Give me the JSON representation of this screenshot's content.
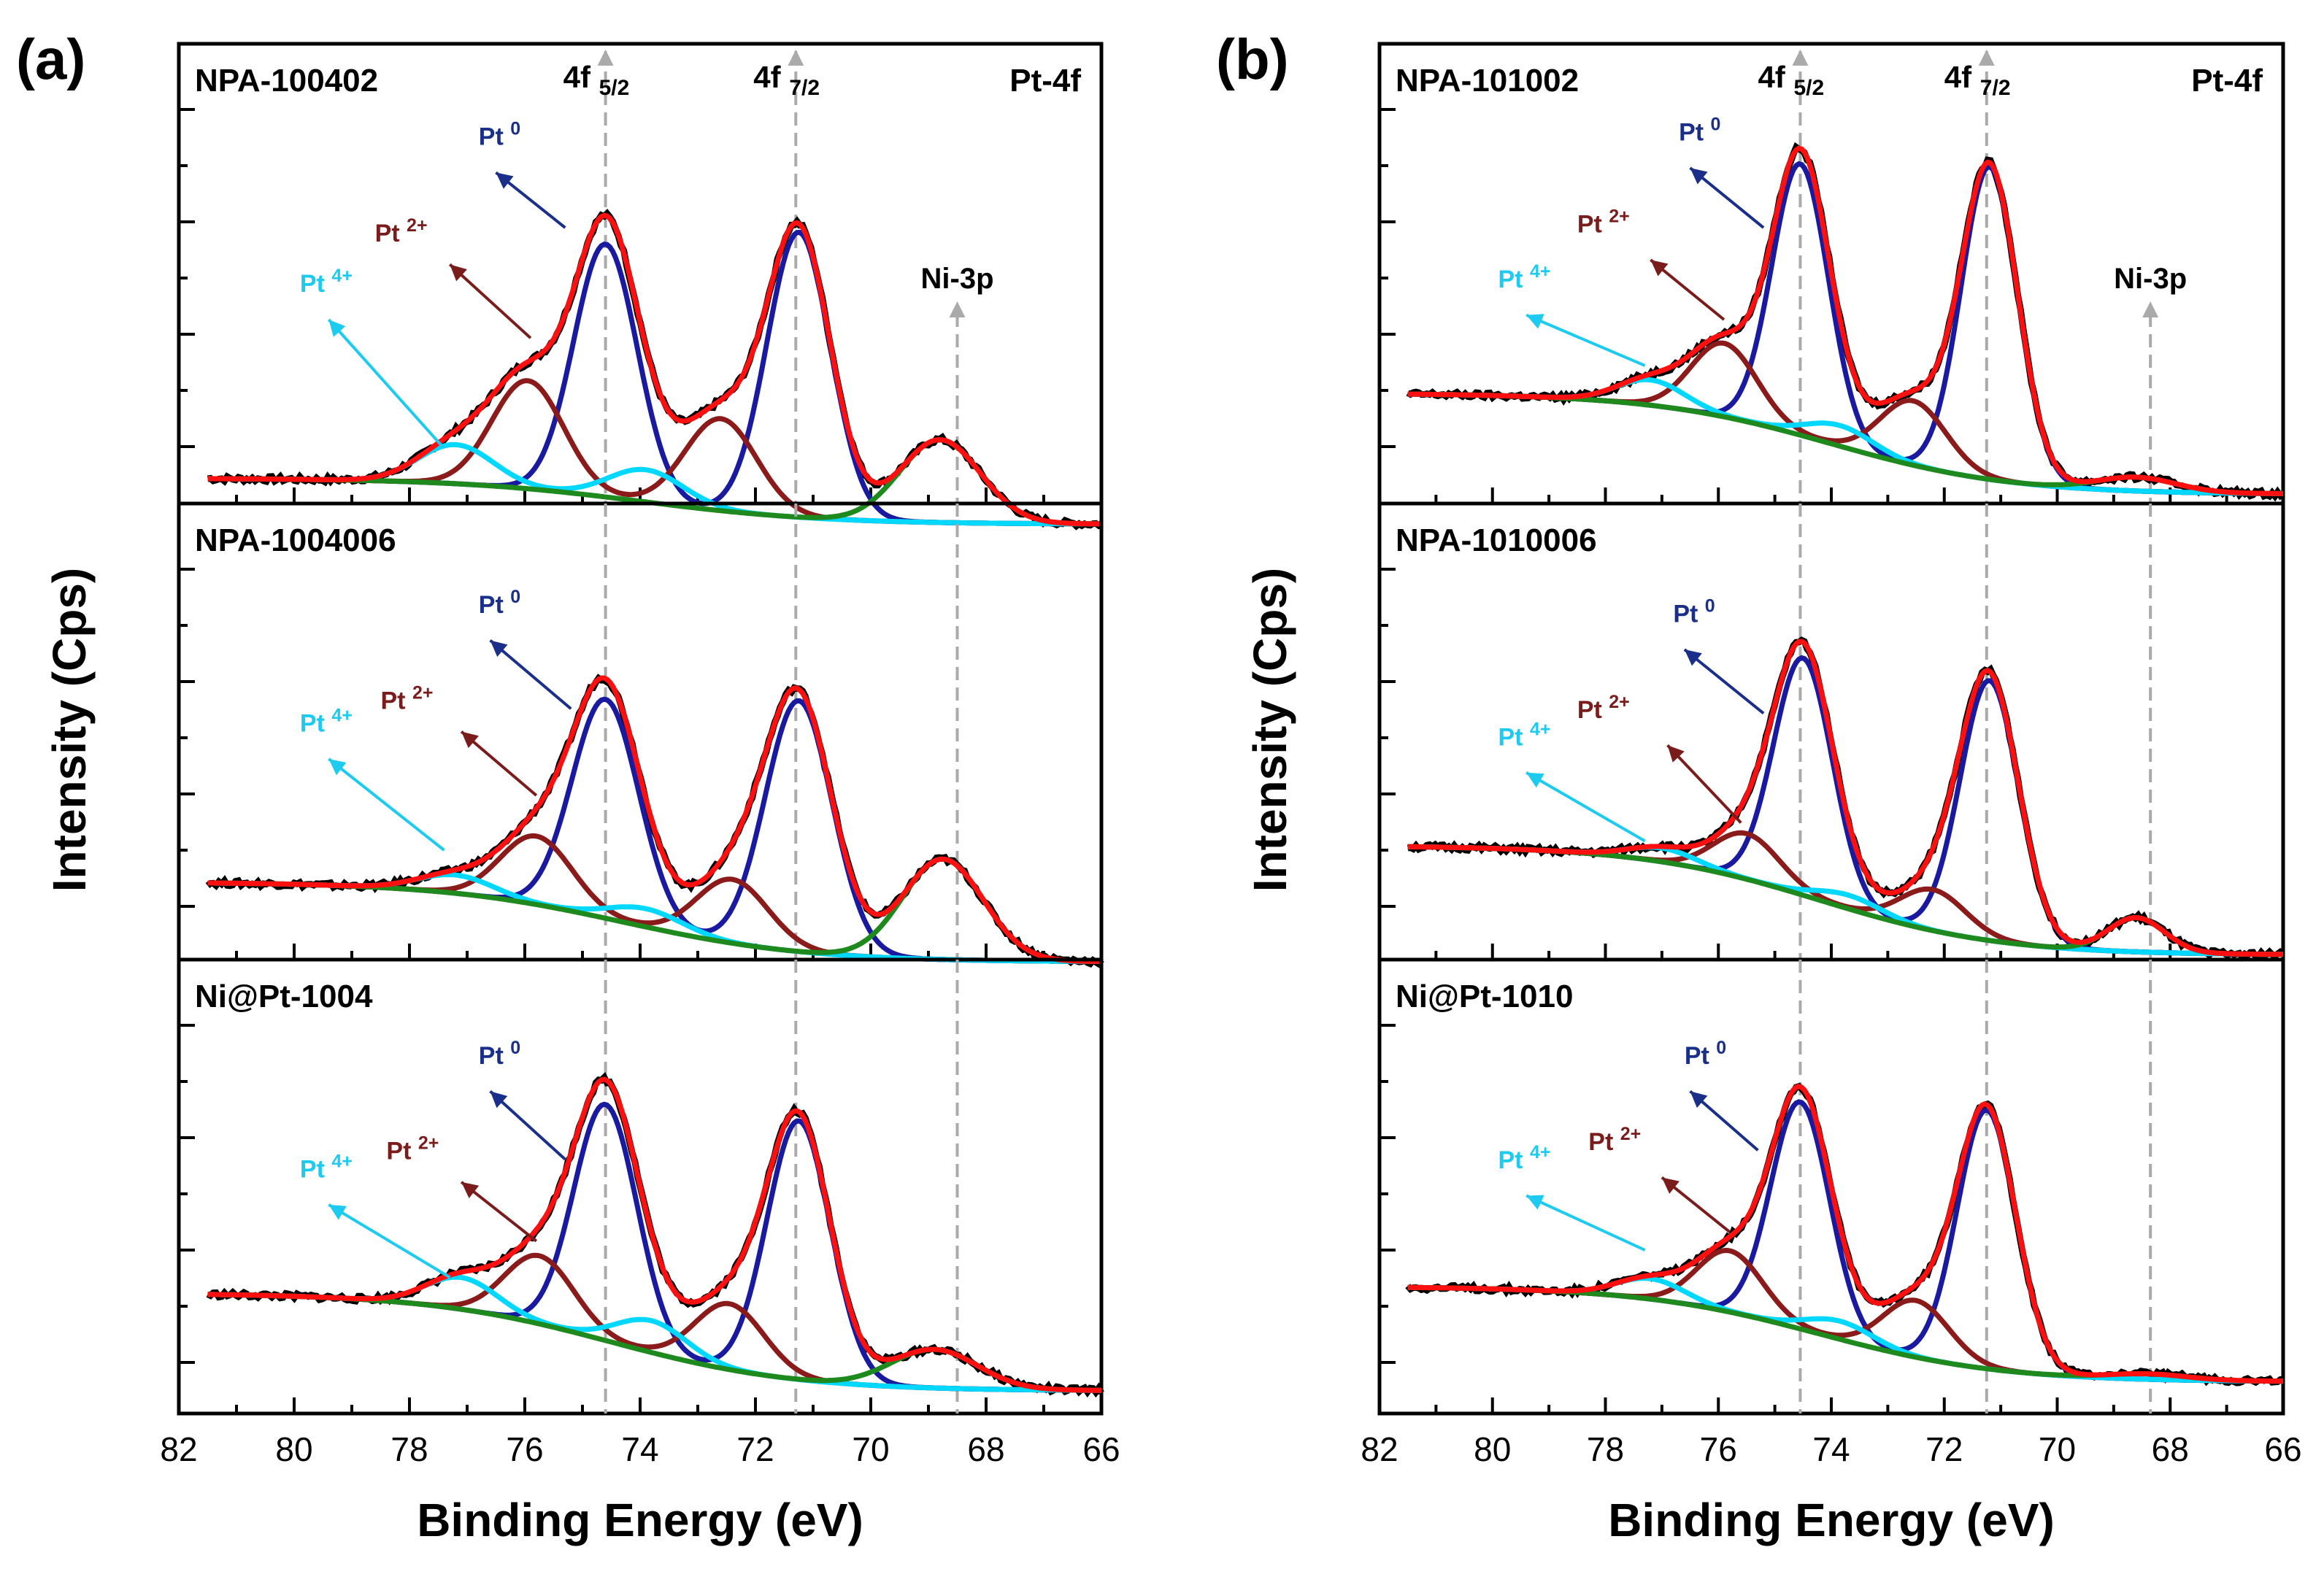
{
  "chart_data": [
    {
      "type": "line",
      "panel_label": "(a)",
      "xlabel": "Binding Energy (eV)",
      "ylabel": "Intensity  (Cps)",
      "xlim": [
        82,
        66
      ],
      "xticks": [
        82,
        80,
        78,
        76,
        74,
        72,
        70,
        68,
        66
      ],
      "element_label": "Pt-4f",
      "peak_labels": [
        {
          "main": "4f",
          "sub": "5/2",
          "x": 74.6
        },
        {
          "main": "4f",
          "sub": "7/2",
          "x": 71.3
        }
      ],
      "ni_label": {
        "text": "Ni-3p",
        "x": 68.5
      },
      "subplots": [
        {
          "name": "NPA-100402",
          "background": {
            "color": "#1e8a1e",
            "start": 0.055,
            "end": -0.045,
            "mid": 74.0
          },
          "components": [
            {
              "label": "Pt 0",
              "color": "#1a1aa0",
              "centers": [
                74.6,
                71.25
              ],
              "amps": [
                0.55,
                0.62
              ],
              "width": 0.55
            },
            {
              "label": "Pt 2+",
              "color": "#8b1a1a",
              "centers": [
                75.95,
                72.6
              ],
              "amps": [
                0.235,
                0.2
              ],
              "width": 0.62
            },
            {
              "label": "Pt 4+",
              "color": "#00d8ff",
              "centers": [
                77.2,
                73.9
              ],
              "amps": [
                0.085,
                0.07
              ],
              "width": 0.65
            },
            {
              "label": "Ni-3p",
              "color": "#1e8a1e",
              "centers": [
                68.8
              ],
              "amps": [
                0.18
              ],
              "width": 0.7
            }
          ],
          "annotations": [
            {
              "text": "Pt",
              "sup": "0",
              "color": "#1a2f8a",
              "text_x": 76.8,
              "text_y": 0.78,
              "from": [
                75.3,
                0.6
              ],
              "to": [
                76.5,
                0.72
              ]
            },
            {
              "text": "Pt",
              "sup": "2+",
              "color": "#7b1c1c",
              "text_x": 78.6,
              "text_y": 0.57,
              "from": [
                75.9,
                0.36
              ],
              "to": [
                77.3,
                0.52
              ]
            },
            {
              "text": "Pt",
              "sup": "4+",
              "color": "#1ecbf0",
              "text_x": 79.9,
              "text_y": 0.46,
              "from": [
                77.4,
                0.12
              ],
              "to": [
                79.4,
                0.4
              ]
            }
          ]
        },
        {
          "name": "NPA-1004006",
          "background": {
            "color": "#1e8a1e",
            "start": 0.17,
            "end": -0.005,
            "mid": 74.3
          },
          "components": [
            {
              "label": "Pt 0",
              "color": "#1a1aa0",
              "centers": [
                74.6,
                71.25
              ],
              "amps": [
                0.48,
                0.55
              ],
              "width": 0.58
            },
            {
              "label": "Pt 2+",
              "color": "#8b1a1a",
              "centers": [
                75.8,
                72.4
              ],
              "amps": [
                0.15,
                0.14
              ],
              "width": 0.62
            },
            {
              "label": "Pt 4+",
              "color": "#00d8ff",
              "centers": [
                77.2,
                73.9
              ],
              "amps": [
                0.04,
                0.04
              ],
              "width": 0.65
            },
            {
              "label": "Ni-3p",
              "color": "#1e8a1e",
              "centers": [
                68.75
              ],
              "amps": [
                0.22
              ],
              "width": 0.7
            }
          ],
          "annotations": [
            {
              "text": "Pt",
              "sup": "0",
              "color": "#1a2f8a",
              "text_x": 76.8,
              "text_y": 0.76,
              "from": [
                75.2,
                0.55
              ],
              "to": [
                76.6,
                0.7
              ]
            },
            {
              "text": "Pt",
              "sup": "2+",
              "color": "#7b1c1c",
              "text_x": 78.5,
              "text_y": 0.55,
              "from": [
                75.8,
                0.36
              ],
              "to": [
                77.1,
                0.5
              ]
            },
            {
              "text": "Pt",
              "sup": "4+",
              "color": "#1ecbf0",
              "text_x": 79.9,
              "text_y": 0.5,
              "from": [
                77.4,
                0.24
              ],
              "to": [
                79.4,
                0.44
              ]
            }
          ]
        },
        {
          "name": "Ni@Pt-1004",
          "background": {
            "color": "#000000",
            "start": 0.265,
            "end": 0.05,
            "mid": 74.5
          },
          "components": [
            {
              "label": "Pt 0",
              "color": "#1a1aa0",
              "centers": [
                74.6,
                71.25
              ],
              "amps": [
                0.52,
                0.57
              ],
              "width": 0.55
            },
            {
              "label": "Pt 2+",
              "color": "#8b1a1a",
              "centers": [
                75.75,
                72.45
              ],
              "amps": [
                0.15,
                0.145
              ],
              "width": 0.6
            },
            {
              "label": "Pt 4+",
              "color": "#00d8ff",
              "centers": [
                77.1,
                73.8
              ],
              "amps": [
                0.07,
                0.07
              ],
              "width": 0.62
            },
            {
              "label": "Ni-3p",
              "color": "#1e8a1e",
              "centers": [
                68.9
              ],
              "amps": [
                0.085
              ],
              "width": 0.75
            }
          ],
          "annotations": [
            {
              "text": "Pt",
              "sup": "0",
              "color": "#1a2f8a",
              "text_x": 76.8,
              "text_y": 0.77,
              "from": [
                75.3,
                0.56
              ],
              "to": [
                76.6,
                0.71
              ]
            },
            {
              "text": "Pt",
              "sup": "2+",
              "color": "#7b1c1c",
              "text_x": 78.4,
              "text_y": 0.56,
              "from": [
                75.8,
                0.38
              ],
              "to": [
                77.1,
                0.51
              ]
            },
            {
              "text": "Pt",
              "sup": "4+",
              "color": "#1ecbf0",
              "text_x": 79.9,
              "text_y": 0.52,
              "from": [
                77.3,
                0.3
              ],
              "to": [
                79.4,
                0.46
              ]
            }
          ]
        }
      ]
    },
    {
      "type": "line",
      "panel_label": "(b)",
      "xlabel": "Binding Energy (eV)",
      "ylabel": "Intensity  (Cps)",
      "xlim": [
        82,
        66
      ],
      "xticks": [
        82,
        80,
        78,
        76,
        74,
        72,
        70,
        68,
        66
      ],
      "element_label": "Pt-4f",
      "peak_labels": [
        {
          "main": "4f",
          "sub": "5/2",
          "x": 74.55
        },
        {
          "main": "4f",
          "sub": "7/2",
          "x": 71.25
        }
      ],
      "ni_label": {
        "text": "Ni-3p",
        "x": 68.35
      },
      "subplots": [
        {
          "name": "NPA-101002",
          "background": {
            "color": "#1e8a1e",
            "start": 0.24,
            "end": 0.02,
            "mid": 74.0
          },
          "components": [
            {
              "label": "Pt 0",
              "color": "#1a1aa0",
              "centers": [
                74.55,
                71.2
              ],
              "amps": [
                0.59,
                0.68
              ],
              "width": 0.5
            },
            {
              "label": "Pt 2+",
              "color": "#8b1a1a",
              "centers": [
                75.9,
                72.55
              ],
              "amps": [
                0.16,
                0.14
              ],
              "width": 0.58
            },
            {
              "label": "Pt 4+",
              "color": "#00d8ff",
              "centers": [
                77.2,
                73.85
              ],
              "amps": [
                0.055,
                0.045
              ],
              "width": 0.6
            },
            {
              "label": "Ni-3p",
              "color": "#1e8a1e",
              "centers": [
                68.6
              ],
              "amps": [
                0.03
              ],
              "width": 0.7
            }
          ],
          "annotations": [
            {
              "text": "Pt",
              "sup": "0",
              "color": "#1a2f8a",
              "text_x": 76.7,
              "text_y": 0.79,
              "from": [
                75.2,
                0.6
              ],
              "to": [
                76.5,
                0.73
              ]
            },
            {
              "text": "Pt",
              "sup": "2+",
              "color": "#7b1c1c",
              "text_x": 78.5,
              "text_y": 0.59,
              "from": [
                75.9,
                0.4
              ],
              "to": [
                77.2,
                0.53
              ]
            },
            {
              "text": "Pt",
              "sup": "4+",
              "color": "#1ecbf0",
              "text_x": 79.9,
              "text_y": 0.47,
              "from": [
                77.3,
                0.3
              ],
              "to": [
                79.4,
                0.41
              ]
            }
          ]
        },
        {
          "name": "NPA-1010006",
          "background": {
            "color": "#1e8a1e",
            "start": 0.25,
            "end": 0.01,
            "mid": 74.2
          },
          "components": [
            {
              "label": "Pt 0",
              "color": "#1a1aa0",
              "centers": [
                74.5,
                71.2
              ],
              "amps": [
                0.52,
                0.57
              ],
              "width": 0.52
            },
            {
              "label": "Pt 2+",
              "color": "#8b1a1a",
              "centers": [
                75.5,
                72.2
              ],
              "amps": [
                0.1,
                0.09
              ],
              "width": 0.58
            },
            {
              "label": "Pt 4+",
              "color": "#00d8ff",
              "centers": [
                77.0,
                73.7
              ],
              "amps": [
                0.03,
                0.03
              ],
              "width": 0.6
            },
            {
              "label": "Ni-3p",
              "color": "#1e8a1e",
              "centers": [
                68.6
              ],
              "amps": [
                0.075
              ],
              "width": 0.5
            }
          ],
          "annotations": [
            {
              "text": "Pt",
              "sup": "0",
              "color": "#1a2f8a",
              "text_x": 76.8,
              "text_y": 0.74,
              "from": [
                75.2,
                0.54
              ],
              "to": [
                76.6,
                0.68
              ]
            },
            {
              "text": "Pt",
              "sup": "2+",
              "color": "#7b1c1c",
              "text_x": 78.5,
              "text_y": 0.53,
              "from": [
                75.6,
                0.3
              ],
              "to": [
                76.9,
                0.47
              ]
            },
            {
              "text": "Pt",
              "sup": "4+",
              "color": "#1ecbf0",
              "text_x": 79.9,
              "text_y": 0.47,
              "from": [
                77.3,
                0.26
              ],
              "to": [
                79.4,
                0.41
              ]
            }
          ]
        },
        {
          "name": "Ni@Pt-1010",
          "background": {
            "color": "#1e8a1e",
            "start": 0.28,
            "end": 0.07,
            "mid": 74.2
          },
          "components": [
            {
              "label": "Pt 0",
              "color": "#1a1aa0",
              "centers": [
                74.55,
                71.25
              ],
              "amps": [
                0.5,
                0.57
              ],
              "width": 0.52
            },
            {
              "label": "Pt 2+",
              "color": "#8b1a1a",
              "centers": [
                75.8,
                72.5
              ],
              "amps": [
                0.135,
                0.125
              ],
              "width": 0.58
            },
            {
              "label": "Pt 4+",
              "color": "#00d8ff",
              "centers": [
                77.2,
                73.85
              ],
              "amps": [
                0.045,
                0.04
              ],
              "width": 0.6
            },
            {
              "label": "Ni-3p",
              "color": "#1e8a1e",
              "centers": [
                68.4
              ],
              "amps": [
                0.012
              ],
              "width": 0.7
            }
          ],
          "annotations": [
            {
              "text": "Pt",
              "sup": "0",
              "color": "#1a2f8a",
              "text_x": 76.6,
              "text_y": 0.77,
              "from": [
                75.3,
                0.58
              ],
              "to": [
                76.5,
                0.71
              ]
            },
            {
              "text": "Pt",
              "sup": "2+",
              "color": "#7b1c1c",
              "text_x": 78.3,
              "text_y": 0.58,
              "from": [
                75.8,
                0.4
              ],
              "to": [
                77.0,
                0.52
              ]
            },
            {
              "text": "Pt",
              "sup": "4+",
              "color": "#1ecbf0",
              "text_x": 79.9,
              "text_y": 0.54,
              "from": [
                77.3,
                0.36
              ],
              "to": [
                79.4,
                0.48
              ]
            }
          ]
        }
      ]
    }
  ]
}
